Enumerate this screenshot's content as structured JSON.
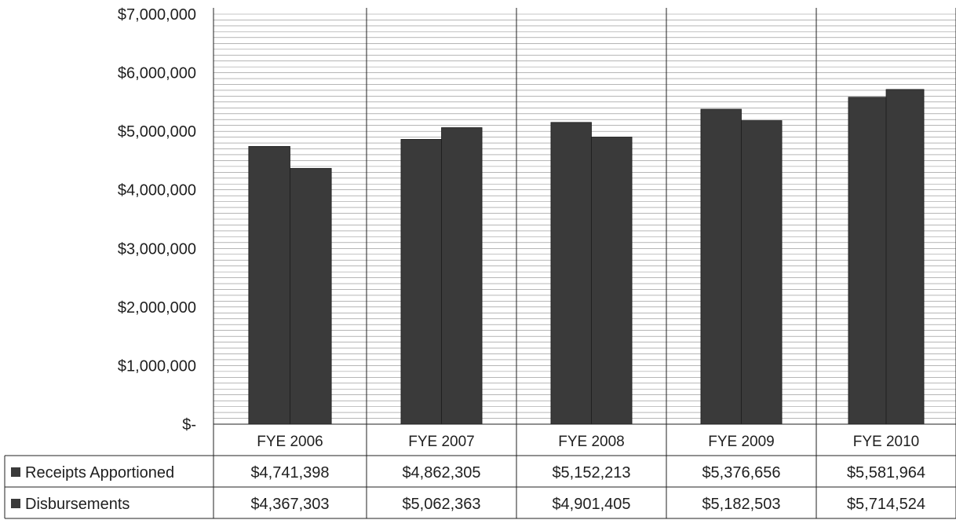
{
  "chart_data": {
    "type": "bar",
    "categories": [
      "FYE 2006",
      "FYE 2007",
      "FYE 2008",
      "FYE 2009",
      "FYE 2010"
    ],
    "series": [
      {
        "name": "Receipts Apportioned",
        "values": [
          4741398,
          4862305,
          5152213,
          5376656,
          5581964
        ]
      },
      {
        "name": "Disbursements",
        "values": [
          4367303,
          5062363,
          4901405,
          5182503,
          5714524
        ]
      }
    ],
    "ylim": [
      0,
      7000000
    ],
    "y_ticks": [
      0,
      1000000,
      2000000,
      3000000,
      4000000,
      5000000,
      6000000,
      7000000
    ],
    "y_tick_labels": [
      "$-",
      "$1,000,000",
      "$2,000,000",
      "$3,000,000",
      "$4,000,000",
      "$5,000,000",
      "$6,000,000",
      "$7,000,000"
    ],
    "data_table": {
      "rows": [
        {
          "label": "Receipts Apportioned",
          "cells": [
            "$4,741,398",
            "$4,862,305",
            "$5,152,213",
            "$5,376,656",
            "$5,581,964"
          ]
        },
        {
          "label": "Disbursements",
          "cells": [
            "$4,367,303",
            "$5,062,363",
            "$4,901,405",
            "$5,182,503",
            "$5,714,524"
          ]
        }
      ]
    },
    "grid": true,
    "legend": "data table",
    "colors": {
      "bar": "#3a3a3a",
      "grid": "#8a8a8a",
      "frame": "#222222",
      "legend_key": "#3a3a3a"
    }
  }
}
